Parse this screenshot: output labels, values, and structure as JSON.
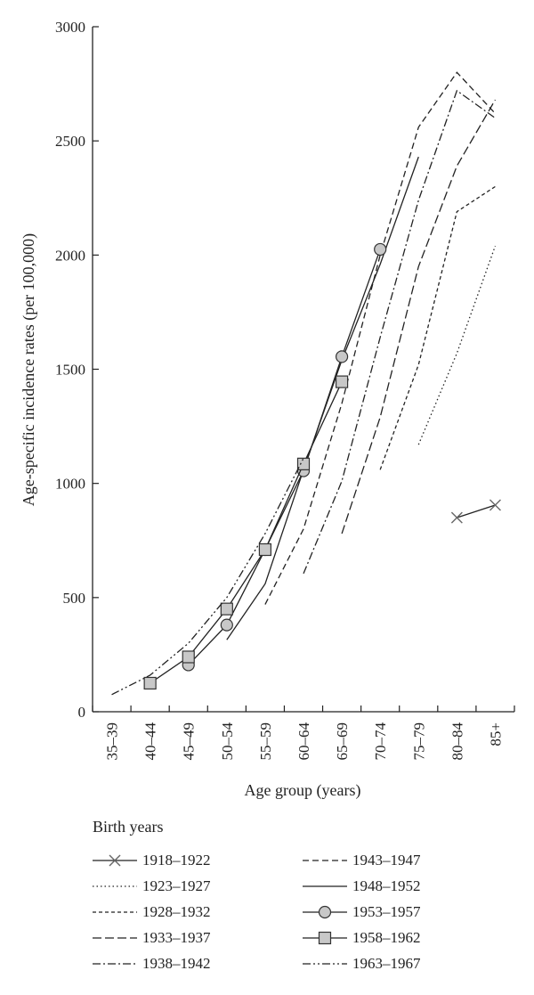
{
  "chart_data": {
    "type": "line",
    "ylabel": "Age-specific incidence rates (per 100,000)",
    "xlabel": "Age group (years)",
    "categories": [
      "35–39",
      "40–44",
      "45–49",
      "50–54",
      "55–59",
      "60–64",
      "65–69",
      "70–74",
      "75–79",
      "80–84",
      "85+"
    ],
    "ylim": [
      0,
      3000
    ],
    "yticks": [
      0,
      500,
      1000,
      1500,
      2000,
      2500,
      3000
    ],
    "legend_title": "Birth years",
    "series": [
      {
        "name": "1918–1922",
        "x": [
          9,
          10
        ],
        "values": [
          850,
          905
        ],
        "style": "solid",
        "marker": "x"
      },
      {
        "name": "1923–1927",
        "x": [
          8,
          9,
          10
        ],
        "values": [
          1170,
          1570,
          2040
        ],
        "style": "dotted",
        "marker": "none"
      },
      {
        "name": "1928–1932",
        "x": [
          7,
          8,
          9,
          10
        ],
        "values": [
          1060,
          1520,
          2190,
          2300
        ],
        "style": "dash-short",
        "marker": "none"
      },
      {
        "name": "1933–1937",
        "x": [
          6,
          7,
          8,
          9,
          10
        ],
        "values": [
          780,
          1290,
          1950,
          2390,
          2680
        ],
        "style": "dash-long",
        "marker": "none"
      },
      {
        "name": "1938–1942",
        "x": [
          5,
          6,
          7,
          8,
          9,
          10
        ],
        "values": [
          605,
          1010,
          1640,
          2240,
          2720,
          2600
        ],
        "style": "dashdot",
        "marker": "none"
      },
      {
        "name": "1943–1947",
        "x": [
          4,
          5,
          6,
          7,
          8,
          9,
          10
        ],
        "values": [
          470,
          800,
          1350,
          2000,
          2560,
          2800,
          2620
        ],
        "style": "dash-medium",
        "marker": "none"
      },
      {
        "name": "1948–1952",
        "x": [
          3,
          4,
          5,
          6,
          7,
          8
        ],
        "values": [
          315,
          560,
          1060,
          1540,
          1960,
          2430
        ],
        "style": "solid",
        "marker": "none"
      },
      {
        "name": "1953–1957",
        "x": [
          2,
          3,
          4,
          5,
          6,
          7
        ],
        "values": [
          205,
          380,
          710,
          1055,
          1555,
          2025
        ],
        "style": "solid",
        "marker": "circle"
      },
      {
        "name": "1958–1962",
        "x": [
          1,
          2,
          3,
          4,
          5,
          6
        ],
        "values": [
          125,
          240,
          450,
          710,
          1085,
          1445
        ],
        "style": "solid",
        "marker": "square"
      },
      {
        "name": "1963–1967",
        "x": [
          0,
          1,
          2,
          3,
          4,
          5
        ],
        "values": [
          75,
          160,
          300,
          500,
          780,
          1110
        ],
        "style": "dashdotdot",
        "marker": "none"
      }
    ]
  }
}
